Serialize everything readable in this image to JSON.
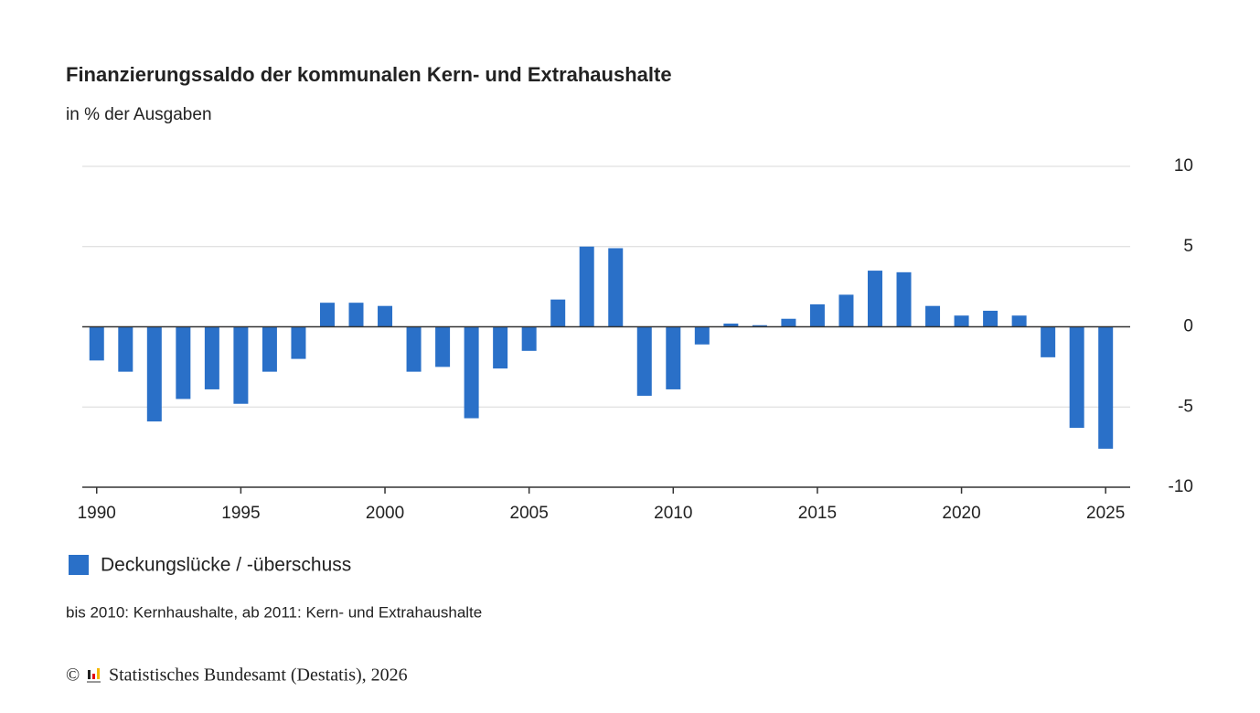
{
  "chart_data": {
    "type": "bar",
    "title": "Finanzierungssaldo der kommunalen Kern- und Extrahaushalte",
    "subtitle": "in % der Ausgaben",
    "x": [
      1990,
      1991,
      1992,
      1993,
      1994,
      1995,
      1996,
      1997,
      1998,
      1999,
      2000,
      2001,
      2002,
      2003,
      2004,
      2005,
      2006,
      2007,
      2008,
      2009,
      2010,
      2011,
      2012,
      2013,
      2014,
      2015,
      2016,
      2017,
      2018,
      2019,
      2020,
      2021,
      2022,
      2023,
      2024,
      2025
    ],
    "series": [
      {
        "name": "Deckungslücke / -überschuss",
        "color": "#2a70c8",
        "values": [
          -2.1,
          -2.8,
          -5.9,
          -4.5,
          -3.9,
          -4.8,
          -2.8,
          -2.0,
          1.5,
          1.5,
          1.3,
          -2.8,
          -2.5,
          -5.7,
          -2.6,
          -1.5,
          1.7,
          5.0,
          4.9,
          -4.3,
          -3.9,
          -1.1,
          0.2,
          0.1,
          0.5,
          1.4,
          2.0,
          3.5,
          3.4,
          1.3,
          0.7,
          1.0,
          0.7,
          -1.9,
          -6.3,
          -7.6
        ]
      }
    ],
    "xlim": [
      1989.5,
      2025.85
    ],
    "xticks": [
      1990,
      1995,
      2000,
      2005,
      2010,
      2015,
      2020,
      2025
    ],
    "ylim": [
      -10,
      10
    ],
    "yticks": [
      10,
      5,
      0,
      -5,
      -10
    ],
    "grid": true,
    "legend": "bottom-left",
    "note": "bis 2010: Kernhaushalte, ab 2011: Kern- und Extrahaushalte",
    "copyright": "©",
    "source": "Statistisches Bundesamt (Destatis), 2026"
  }
}
